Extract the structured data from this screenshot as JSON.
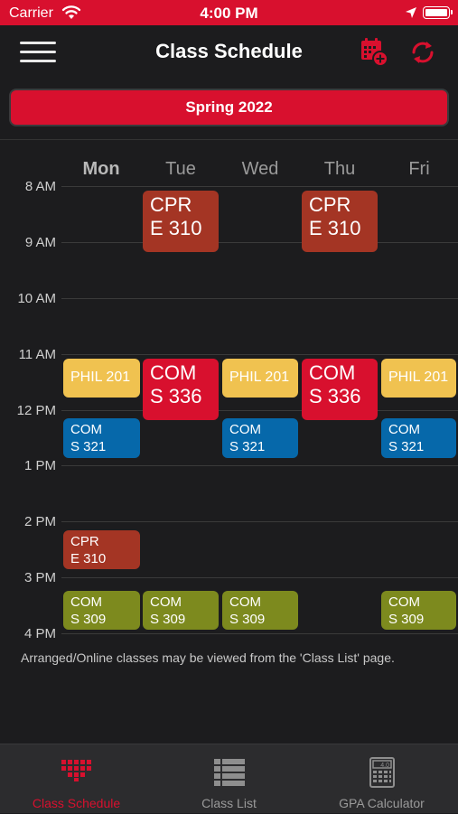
{
  "status_bar": {
    "carrier": "Carrier",
    "time": "4:00 PM"
  },
  "nav": {
    "title": "Class Schedule"
  },
  "semester": "Spring 2022",
  "days": [
    "Mon",
    "Tue",
    "Wed",
    "Thu",
    "Fri"
  ],
  "active_day": "Mon",
  "times": [
    "8 AM",
    "9 AM",
    "10 AM",
    "11 AM",
    "12 PM",
    "1 PM",
    "2 PM",
    "3 PM",
    "4 PM"
  ],
  "classes": [
    {
      "text": "CPR\nE 310",
      "style": "big",
      "color": "#a43524"
    },
    {
      "text": "CPR\nE 310",
      "style": "big",
      "color": "#a43524"
    },
    {
      "text": "PHIL 201",
      "style": "one",
      "color": "#f0c250"
    },
    {
      "text": "COM\nS 336",
      "style": "big",
      "color": "#d8102e"
    },
    {
      "text": "PHIL 201",
      "style": "one",
      "color": "#f0c250"
    },
    {
      "text": "COM\nS 336",
      "style": "big",
      "color": "#d8102e"
    },
    {
      "text": "PHIL 201",
      "style": "one",
      "color": "#f0c250"
    },
    {
      "text": "COM\nS 321",
      "style": "small",
      "color": "#0668aa"
    },
    {
      "text": "COM\nS 321",
      "style": "small",
      "color": "#0668aa"
    },
    {
      "text": "COM\nS 321",
      "style": "small",
      "color": "#0668aa"
    },
    {
      "text": "CPR\nE 310",
      "style": "small",
      "color": "#a43524"
    },
    {
      "text": "COM\nS 309",
      "style": "small",
      "color": "#7d8a1e"
    },
    {
      "text": "COM\nS 309",
      "style": "small",
      "color": "#7d8a1e"
    },
    {
      "text": "COM\nS 309",
      "style": "small",
      "color": "#7d8a1e"
    },
    {
      "text": "COM\nS 309",
      "style": "small",
      "color": "#7d8a1e"
    }
  ],
  "note": "Arranged/Online classes may be viewed from the 'Class List' page.",
  "tabs": [
    {
      "label": "Class Schedule",
      "icon": "schedule-grid-icon",
      "active": true
    },
    {
      "label": "Class List",
      "icon": "list-icon",
      "active": false
    },
    {
      "label": "GPA Calculator",
      "icon": "calculator-icon",
      "active": false
    }
  ],
  "calculator_display": "4.0",
  "colors": {
    "accent": "#d8102e",
    "background": "#1c1c1e"
  }
}
